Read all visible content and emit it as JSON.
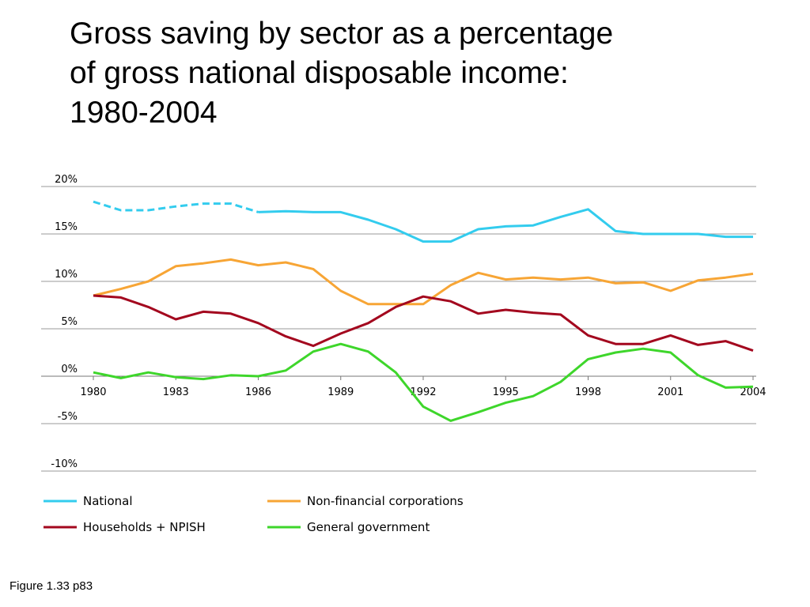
{
  "slide": {
    "title_lines": [
      "Gross saving by sector as a percentage",
      "of gross national disposable income:",
      "1980-2004"
    ],
    "caption": "Figure 1.33 p83"
  },
  "chart_data": {
    "type": "line",
    "title": "Gross saving by sector as a percentage of gross national disposable income: 1980-2004",
    "xlabel": "",
    "ylabel": "",
    "ylim": [
      -10,
      20
    ],
    "xlim": [
      1980,
      2004
    ],
    "y_ticks": [
      20,
      15,
      10,
      5,
      0,
      -5,
      -10
    ],
    "y_tick_labels": [
      "20%",
      "15%",
      "10%",
      "5%",
      "0%",
      "-5%",
      "-10%"
    ],
    "x_ticks": [
      1980,
      1983,
      1986,
      1989,
      1992,
      1995,
      1998,
      2001,
      2004
    ],
    "x_tick_labels": [
      "1980",
      "1983",
      "1986",
      "1989",
      "1992",
      "1995",
      "1998",
      "2001",
      "2004"
    ],
    "grid": "horizontal",
    "legend_position": "bottom",
    "x": [
      1980,
      1981,
      1982,
      1983,
      1984,
      1985,
      1986,
      1987,
      1988,
      1989,
      1990,
      1991,
      1992,
      1993,
      1994,
      1995,
      1996,
      1997,
      1998,
      1999,
      2000,
      2001,
      2002,
      2003,
      2004
    ],
    "series": [
      {
        "name": "National",
        "color": "#33ccee",
        "dashed_until": 1986,
        "values": [
          18.4,
          17.5,
          17.5,
          17.9,
          18.2,
          18.2,
          17.3,
          17.4,
          17.3,
          17.3,
          16.5,
          15.5,
          14.2,
          14.2,
          15.5,
          15.8,
          15.9,
          16.8,
          17.6,
          15.3,
          15.0,
          15.0,
          15.0,
          14.7,
          14.7
        ]
      },
      {
        "name": "Non-financial corporations",
        "color": "#f7a535",
        "values": [
          8.5,
          9.2,
          10.0,
          11.6,
          11.9,
          12.3,
          11.7,
          12.0,
          11.3,
          9.0,
          7.6,
          7.6,
          7.6,
          9.6,
          10.9,
          10.2,
          10.4,
          10.2,
          10.4,
          9.8,
          9.9,
          9.0,
          10.1,
          10.4,
          10.8
        ]
      },
      {
        "name": "Households + NPISH",
        "color": "#a3071e",
        "values": [
          8.5,
          8.3,
          7.3,
          6.0,
          6.8,
          6.6,
          5.6,
          4.2,
          3.2,
          4.5,
          5.6,
          7.3,
          8.4,
          7.9,
          6.6,
          7.0,
          6.7,
          6.5,
          4.3,
          3.4,
          3.4,
          4.3,
          3.3,
          3.7,
          2.7
        ]
      },
      {
        "name": "General government",
        "color": "#3ed62b",
        "values": [
          0.4,
          -0.2,
          0.4,
          -0.1,
          -0.3,
          0.1,
          0.0,
          0.6,
          2.6,
          3.4,
          2.6,
          0.4,
          -3.2,
          -4.7,
          -3.8,
          -2.8,
          -2.1,
          -0.6,
          1.8,
          2.5,
          2.9,
          2.5,
          0.1,
          -1.2,
          -1.1
        ]
      }
    ]
  }
}
